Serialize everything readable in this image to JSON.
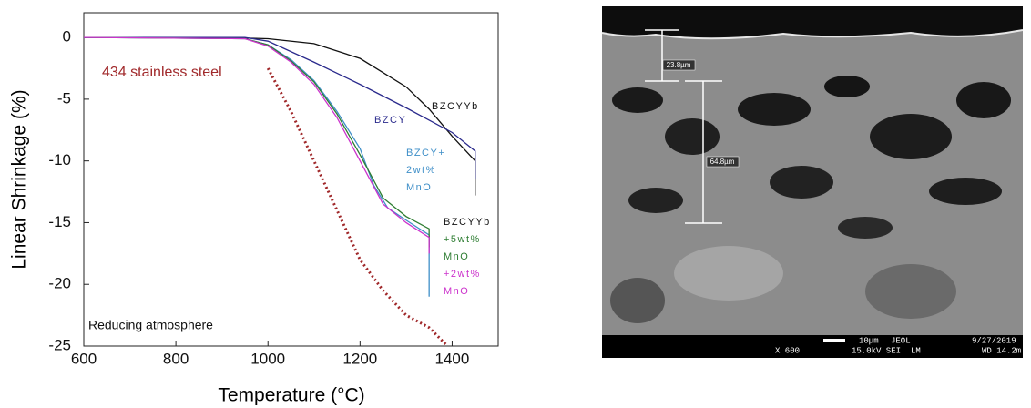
{
  "chart_data": {
    "type": "line",
    "xlabel": "Temperature (°C)",
    "ylabel": "Linear Shrinkage (%)",
    "xlim": [
      600,
      1500
    ],
    "ylim": [
      -25,
      2
    ],
    "xticks": [
      600,
      800,
      1000,
      1200,
      1400
    ],
    "yticks": [
      0,
      -5,
      -10,
      -15,
      -20,
      -25
    ],
    "series": [
      {
        "name": [
          "BZCYYb"
        ],
        "color": "#111111",
        "dotted": false,
        "x": [
          600,
          900,
          1000,
          1100,
          1200,
          1300,
          1350,
          1400,
          1450,
          1450
        ],
        "values": [
          0,
          0,
          -0.1,
          -0.5,
          -1.7,
          -4,
          -5.8,
          -8,
          -10,
          -12.8
        ]
      },
      {
        "name": [
          "BZCY"
        ],
        "color": "#2a2a8c",
        "dotted": false,
        "x": [
          600,
          950,
          1000,
          1100,
          1200,
          1300,
          1400,
          1450,
          1450
        ],
        "values": [
          0,
          0,
          -0.3,
          -2,
          -3.8,
          -5.7,
          -7.7,
          -9.2,
          -11.5
        ]
      },
      {
        "name": [
          "BZCY+",
          "2wt%",
          "MnO"
        ],
        "color": "#3f8fc8",
        "dotted": false,
        "x": [
          600,
          950,
          1000,
          1050,
          1100,
          1150,
          1200,
          1230,
          1260,
          1300,
          1350,
          1350
        ],
        "values": [
          0,
          -0.1,
          -0.6,
          -1.8,
          -3.5,
          -6,
          -9,
          -12,
          -13.8,
          -14.8,
          -16,
          -21
        ]
      },
      {
        "name": [
          "+5wt%",
          "MnO"
        ],
        "color": "#2e7d32",
        "dotted": false,
        "x": [
          600,
          950,
          1000,
          1050,
          1100,
          1150,
          1200,
          1250,
          1300,
          1350,
          1350
        ],
        "values": [
          0,
          -0.1,
          -0.6,
          -1.9,
          -3.6,
          -6.2,
          -9.5,
          -13,
          -14.5,
          -15.5,
          -17
        ]
      },
      {
        "name": [
          "+2wt%",
          "MnO"
        ],
        "color": "#cc33cc",
        "dotted": false,
        "x": [
          600,
          950,
          1000,
          1050,
          1100,
          1150,
          1200,
          1250,
          1300,
          1350,
          1350
        ],
        "values": [
          0,
          -0.1,
          -0.7,
          -2,
          -3.8,
          -6.5,
          -10,
          -13.5,
          -15,
          -16.2,
          -17.5
        ]
      },
      {
        "name": [
          "434 stainless steel"
        ],
        "color": "#a0282a",
        "dotted": true,
        "x": [
          1000,
          1050,
          1100,
          1150,
          1200,
          1250,
          1300,
          1350,
          1390
        ],
        "values": [
          -2.5,
          -6,
          -10,
          -14,
          -18,
          -20.5,
          -22.5,
          -23.5,
          -25
        ]
      }
    ],
    "annotations": [
      "BZCYYb",
      "Reducing atmosphere"
    ]
  },
  "image": {
    "scale_labels": [
      "23.8µm",
      "64.8µm"
    ],
    "footer": [
      "10µm",
      "JEOL",
      "9/27/2019",
      "X 600",
      "15.0kV SEI",
      "LM",
      "WD 14.2m"
    ]
  }
}
